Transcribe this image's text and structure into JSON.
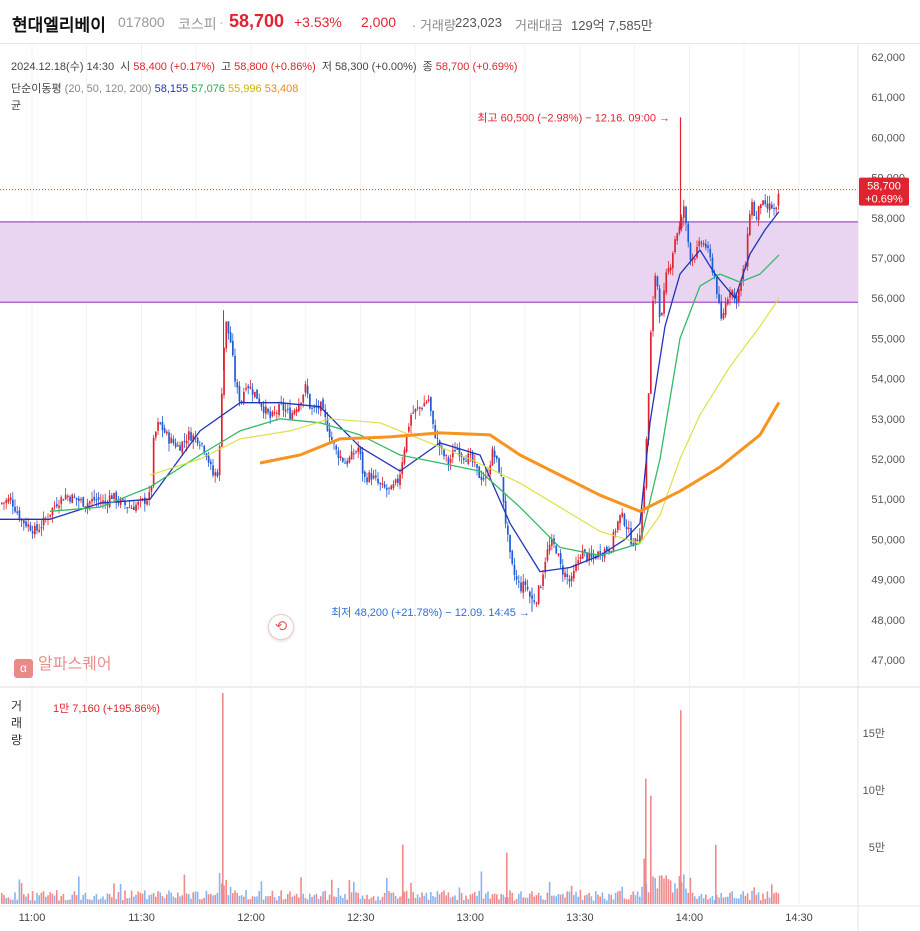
{
  "header": {
    "name": "현대엘리베이",
    "code": "017800",
    "market": "코스피",
    "dot": "·",
    "price": "58,700",
    "change_pct": "+3.53%",
    "change": "2,000",
    "volume_label": "· 거래량",
    "volume": "223,023",
    "amount_label": "거래대금",
    "amount": "129억 7,585만"
  },
  "ohlc": {
    "datetime": "2024.12.18(수) 14:30",
    "open_label": "시",
    "open": "58,400 (+0.17%)",
    "high_label": "고",
    "high": "58,800 (+0.86%)",
    "low_label": "저",
    "low": "58,300 (+0.00%)",
    "close_label": "종",
    "close": "58,700 (+0.69%)"
  },
  "ma_legend": {
    "label": "단순이동평",
    "label_wrap": "균",
    "periods": "(20, 50, 120, 200)",
    "ma20": "58,155",
    "ma50": "57,076",
    "ma120": "55,996",
    "ma200": "53,408"
  },
  "annotations": {
    "high": "최고 60,500 (−2.98%) − 12.16. 09:00 →",
    "low": "최저 48,200 (+21.78%) − 12.09. 14:45 →",
    "last_price": "58,700",
    "last_pct": "+0.69%"
  },
  "volume_panel": {
    "title": "거래량",
    "value": "1만 7,160 (+195.86%)"
  },
  "brand": "알파스퀘어",
  "back_icon": "back-arrow-icon",
  "colors": {
    "up": "#e0242f",
    "down": "#1f5bd6",
    "ma20": "#2233bb",
    "ma50": "#33bb66",
    "ma120": "#dddd33",
    "ma200": "#f7931e",
    "zone": "#e9d5f2",
    "zone_border": "#b06ad6"
  },
  "chart_data": [
    {
      "type": "candlestick",
      "title": "",
      "x_ticks": [
        "11:00",
        "11:30",
        "12:00",
        "12:30",
        "13:00",
        "13:30",
        "14:00",
        "14:30"
      ],
      "y_ticks": [
        "47,000",
        "48,000",
        "49,000",
        "50,000",
        "51,000",
        "52,000",
        "53,000",
        "54,000",
        "55,000",
        "56,000",
        "57,000",
        "58,000",
        "59,000",
        "60,000",
        "61,000",
        "62,000"
      ],
      "ylim": [
        46600,
        62200
      ],
      "highlight_zone": [
        55900,
        57900
      ],
      "last_price": 58700,
      "close_path": [
        [
          0,
          50900
        ],
        [
          10,
          51000
        ],
        [
          20,
          50500
        ],
        [
          30,
          50300
        ],
        [
          35,
          50200
        ],
        [
          45,
          50500
        ],
        [
          55,
          50900
        ],
        [
          65,
          51100
        ],
        [
          75,
          51000
        ],
        [
          85,
          50900
        ],
        [
          95,
          51000
        ],
        [
          105,
          50900
        ],
        [
          110,
          51100
        ],
        [
          120,
          50900
        ],
        [
          130,
          50800
        ],
        [
          140,
          50900
        ],
        [
          150,
          51100
        ],
        [
          153,
          52500
        ],
        [
          158,
          52900
        ],
        [
          168,
          52500
        ],
        [
          178,
          52300
        ],
        [
          188,
          52600
        ],
        [
          198,
          52500
        ],
        [
          205,
          52200
        ],
        [
          212,
          51600
        ],
        [
          218,
          51700
        ],
        [
          222,
          54400
        ],
        [
          225,
          55400
        ],
        [
          230,
          54900
        ],
        [
          235,
          53800
        ],
        [
          240,
          53400
        ],
        [
          245,
          53900
        ],
        [
          255,
          53600
        ],
        [
          262,
          53300
        ],
        [
          270,
          53000
        ],
        [
          280,
          53300
        ],
        [
          290,
          53100
        ],
        [
          300,
          53500
        ],
        [
          305,
          53800
        ],
        [
          310,
          53200
        ],
        [
          320,
          53300
        ],
        [
          328,
          52700
        ],
        [
          335,
          52200
        ],
        [
          345,
          51900
        ],
        [
          352,
          52100
        ],
        [
          358,
          52300
        ],
        [
          363,
          51500
        ],
        [
          370,
          51600
        ],
        [
          380,
          51300
        ],
        [
          390,
          51200
        ],
        [
          398,
          51500
        ],
        [
          405,
          52500
        ],
        [
          410,
          53100
        ],
        [
          415,
          53200
        ],
        [
          420,
          53300
        ],
        [
          428,
          53500
        ],
        [
          432,
          52800
        ],
        [
          440,
          52200
        ],
        [
          448,
          51900
        ],
        [
          455,
          52300
        ],
        [
          462,
          52100
        ],
        [
          470,
          52000
        ],
        [
          478,
          51600
        ],
        [
          485,
          51500
        ],
        [
          492,
          52200
        ],
        [
          500,
          51600
        ],
        [
          505,
          50400
        ],
        [
          510,
          49400
        ],
        [
          515,
          49000
        ],
        [
          520,
          48800
        ],
        [
          525,
          48900
        ],
        [
          530,
          48500
        ],
        [
          535,
          48500
        ],
        [
          540,
          48900
        ],
        [
          545,
          49600
        ],
        [
          550,
          49900
        ],
        [
          555,
          49800
        ],
        [
          560,
          49300
        ],
        [
          565,
          49100
        ],
        [
          570,
          48900
        ],
        [
          575,
          49300
        ],
        [
          580,
          49700
        ],
        [
          590,
          49500
        ],
        [
          600,
          49700
        ],
        [
          610,
          49800
        ],
        [
          615,
          50300
        ],
        [
          620,
          50600
        ],
        [
          625,
          50400
        ],
        [
          630,
          50000
        ],
        [
          635,
          49900
        ],
        [
          640,
          50300
        ],
        [
          643,
          51200
        ],
        [
          647,
          53100
        ],
        [
          650,
          55100
        ],
        [
          655,
          56800
        ],
        [
          660,
          55300
        ],
        [
          665,
          56500
        ],
        [
          670,
          56900
        ],
        [
          675,
          57600
        ],
        [
          680,
          57800
        ],
        [
          683,
          58300
        ],
        [
          686,
          57600
        ],
        [
          690,
          57000
        ],
        [
          695,
          57100
        ],
        [
          700,
          57400
        ],
        [
          705,
          57300
        ],
        [
          710,
          56900
        ],
        [
          715,
          56400
        ],
        [
          720,
          55400
        ],
        [
          725,
          55900
        ],
        [
          730,
          56300
        ],
        [
          735,
          55900
        ],
        [
          740,
          56400
        ],
        [
          745,
          56900
        ],
        [
          750,
          58500
        ],
        [
          755,
          57900
        ],
        [
          760,
          58400
        ],
        [
          765,
          58200
        ],
        [
          770,
          58300
        ],
        [
          775,
          58100
        ],
        [
          779,
          58700
        ]
      ],
      "series": [
        {
          "name": "20",
          "values": [
            [
              0,
              50500
            ],
            [
              50,
              50500
            ],
            [
              100,
              50900
            ],
            [
              150,
              51000
            ],
            [
              200,
              52700
            ],
            [
              240,
              53400
            ],
            [
              280,
              53400
            ],
            [
              320,
              53300
            ],
            [
              360,
              52300
            ],
            [
              400,
              51700
            ],
            [
              440,
              52400
            ],
            [
              480,
              52100
            ],
            [
              510,
              50400
            ],
            [
              540,
              49200
            ],
            [
              570,
              49300
            ],
            [
              600,
              49600
            ],
            [
              625,
              50000
            ],
            [
              640,
              50400
            ],
            [
              650,
              52900
            ],
            [
              665,
              55300
            ],
            [
              680,
              56600
            ],
            [
              700,
              57200
            ],
            [
              715,
              56600
            ],
            [
              735,
              56000
            ],
            [
              750,
              57100
            ],
            [
              765,
              57700
            ],
            [
              779,
              58155
            ]
          ]
        },
        {
          "name": "50",
          "values": [
            [
              50,
              50700
            ],
            [
              100,
              50800
            ],
            [
              150,
              51300
            ],
            [
              200,
              52100
            ],
            [
              240,
              52700
            ],
            [
              280,
              53000
            ],
            [
              320,
              52900
            ],
            [
              360,
              52600
            ],
            [
              400,
              52100
            ],
            [
              440,
              51900
            ],
            [
              480,
              51700
            ],
            [
              520,
              50800
            ],
            [
              560,
              49800
            ],
            [
              600,
              49600
            ],
            [
              640,
              49900
            ],
            [
              660,
              52000
            ],
            [
              680,
              55000
            ],
            [
              700,
              56300
            ],
            [
              720,
              56600
            ],
            [
              740,
              56400
            ],
            [
              760,
              56600
            ],
            [
              779,
              57076
            ]
          ]
        },
        {
          "name": "120",
          "values": [
            [
              150,
              51600
            ],
            [
              200,
              52000
            ],
            [
              240,
              52500
            ],
            [
              290,
              52700
            ],
            [
              330,
              53000
            ],
            [
              380,
              52900
            ],
            [
              420,
              52500
            ],
            [
              470,
              52000
            ],
            [
              520,
              51400
            ],
            [
              560,
              50800
            ],
            [
              600,
              50200
            ],
            [
              640,
              49900
            ],
            [
              660,
              50600
            ],
            [
              680,
              52000
            ],
            [
              700,
              53100
            ],
            [
              730,
              54300
            ],
            [
              760,
              55300
            ],
            [
              779,
              55996
            ]
          ]
        },
        {
          "name": "200",
          "values": [
            [
              260,
              51900
            ],
            [
              300,
              52100
            ],
            [
              340,
              52500
            ],
            [
              390,
              52550
            ],
            [
              440,
              52650
            ],
            [
              490,
              52600
            ],
            [
              520,
              52100
            ],
            [
              560,
              51600
            ],
            [
              600,
              51100
            ],
            [
              640,
              50700
            ],
            [
              680,
              51200
            ],
            [
              720,
              51800
            ],
            [
              760,
              52600
            ],
            [
              779,
              53408
            ]
          ]
        }
      ],
      "ma_values": {
        "ma20": 58155,
        "ma50": 57076,
        "ma120": 55996,
        "ma200": 53408
      }
    },
    {
      "type": "bar",
      "title": "거래량",
      "y_ticks": [
        "5만",
        "10만",
        "15만"
      ],
      "ylim": [
        0,
        190000
      ],
      "peaks": [
        [
          222,
          185000
        ],
        [
          680,
          170000
        ],
        [
          645,
          110000
        ],
        [
          650,
          95000
        ],
        [
          402,
          52000
        ],
        [
          506,
          45000
        ],
        [
          715,
          52000
        ]
      ],
      "last_value": 17160
    }
  ]
}
